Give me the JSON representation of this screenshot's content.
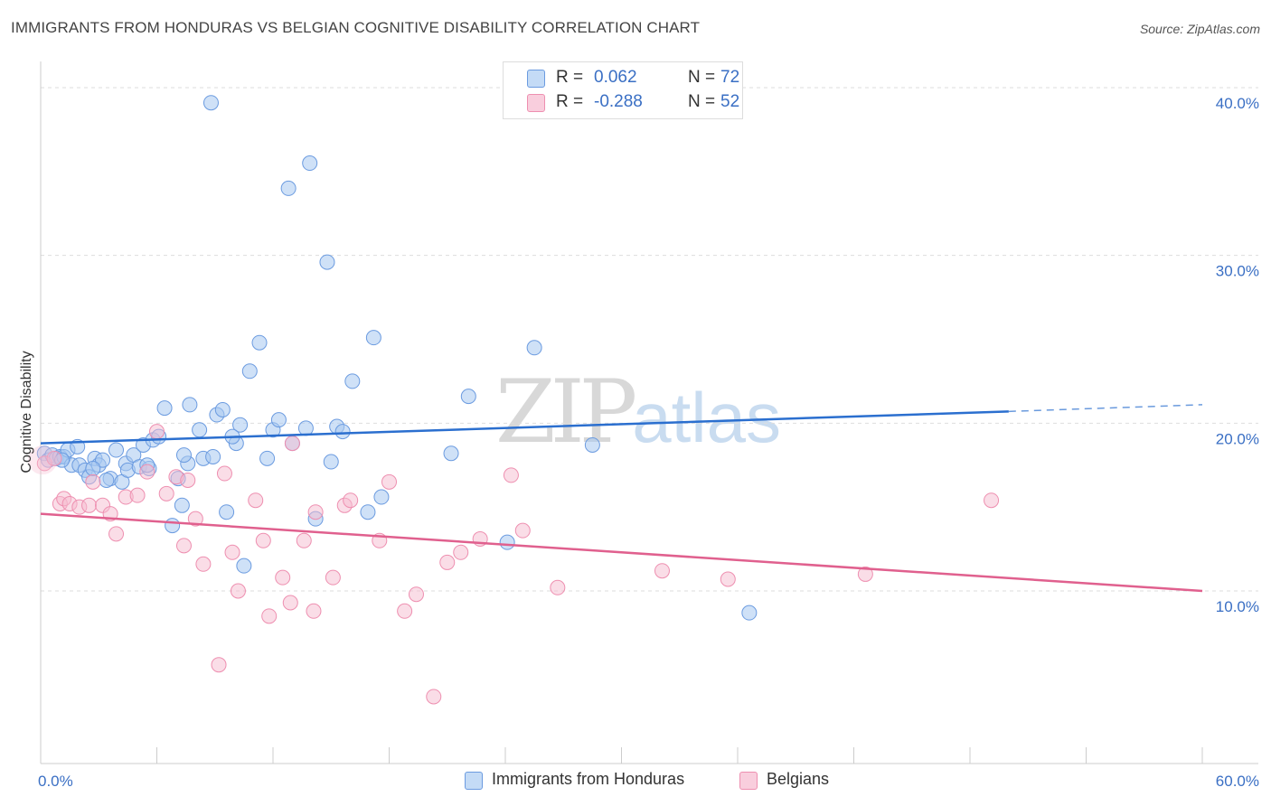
{
  "title": "IMMIGRANTS FROM HONDURAS VS BELGIAN COGNITIVE DISABILITY CORRELATION CHART",
  "source": "Source: ZipAtlas.com",
  "watermark": {
    "zip": "ZIP",
    "atlas": "atlas"
  },
  "legend_top": [
    {
      "r_label": "R =",
      "r_value": "0.062",
      "n_label": "N =",
      "n_value": "72"
    },
    {
      "r_label": "R =",
      "r_value": "-0.288",
      "n_label": "N =",
      "n_value": "52"
    }
  ],
  "legend_bottom": [
    "Immigrants from Honduras",
    "Belgians"
  ],
  "colors": {
    "blue_fill": "#a8c8f0",
    "blue_edge": "#6b9be0",
    "blue_line": "#2b6fcf",
    "pink_fill": "#f6bcd0",
    "pink_edge": "#ee8fb0",
    "pink_line": "#e0608e",
    "axis_text": "#3a6fc4",
    "grid": "#dddddd"
  },
  "chart_data": {
    "type": "scatter",
    "title": "IMMIGRANTS FROM HONDURAS VS BELGIAN COGNITIVE DISABILITY CORRELATION CHART",
    "xlabel": "",
    "ylabel": "Cognitive Disability",
    "xlim": [
      0,
      60
    ],
    "ylim": [
      0,
      40
    ],
    "x_tick_labels": [
      "0.0%",
      "60.0%"
    ],
    "y_ticks": [
      10,
      20,
      30,
      40
    ],
    "y_tick_labels": [
      "10.0%",
      "20.0%",
      "30.0%",
      "40.0%"
    ],
    "series": [
      {
        "name": "Immigrants from Honduras",
        "r": 0.062,
        "n": 72,
        "trend": {
          "x0": 0,
          "y0": 18.8,
          "x1": 50,
          "y1": 20.7,
          "dashed_to": 60,
          "dashed_y": 21.1
        },
        "points": [
          [
            0.2,
            18.2
          ],
          [
            0.4,
            17.8
          ],
          [
            0.6,
            18.1
          ],
          [
            0.8,
            17.9
          ],
          [
            1.0,
            18.0
          ],
          [
            1.2,
            18.0
          ],
          [
            1.4,
            18.4
          ],
          [
            1.6,
            17.5
          ],
          [
            1.9,
            18.6
          ],
          [
            2.0,
            17.5
          ],
          [
            2.3,
            17.2
          ],
          [
            2.5,
            16.8
          ],
          [
            2.8,
            17.9
          ],
          [
            3.0,
            17.5
          ],
          [
            3.2,
            17.8
          ],
          [
            3.6,
            16.7
          ],
          [
            3.9,
            18.4
          ],
          [
            4.2,
            16.5
          ],
          [
            4.4,
            17.6
          ],
          [
            4.5,
            17.2
          ],
          [
            4.8,
            18.1
          ],
          [
            5.1,
            17.4
          ],
          [
            5.3,
            18.7
          ],
          [
            5.6,
            17.3
          ],
          [
            5.8,
            19.0
          ],
          [
            6.1,
            19.2
          ],
          [
            6.4,
            20.9
          ],
          [
            6.8,
            13.9
          ],
          [
            7.1,
            16.7
          ],
          [
            7.3,
            15.1
          ],
          [
            7.6,
            17.6
          ],
          [
            7.7,
            21.1
          ],
          [
            8.2,
            19.6
          ],
          [
            8.4,
            17.9
          ],
          [
            8.8,
            39.1
          ],
          [
            8.9,
            18.0
          ],
          [
            9.1,
            20.5
          ],
          [
            9.4,
            20.8
          ],
          [
            9.6,
            14.7
          ],
          [
            10.1,
            18.8
          ],
          [
            10.3,
            19.9
          ],
          [
            10.5,
            11.5
          ],
          [
            10.8,
            23.1
          ],
          [
            11.3,
            24.8
          ],
          [
            11.7,
            17.9
          ],
          [
            12.0,
            19.6
          ],
          [
            12.3,
            20.2
          ],
          [
            12.8,
            34.0
          ],
          [
            13.0,
            18.8
          ],
          [
            13.7,
            19.7
          ],
          [
            13.9,
            35.5
          ],
          [
            14.2,
            14.3
          ],
          [
            14.8,
            29.6
          ],
          [
            15.0,
            17.7
          ],
          [
            15.3,
            19.8
          ],
          [
            15.6,
            19.5
          ],
          [
            16.1,
            22.5
          ],
          [
            16.9,
            14.7
          ],
          [
            17.2,
            25.1
          ],
          [
            17.6,
            15.6
          ],
          [
            21.2,
            18.2
          ],
          [
            22.1,
            21.6
          ],
          [
            24.1,
            12.9
          ],
          [
            25.5,
            24.5
          ],
          [
            28.5,
            18.7
          ],
          [
            36.6,
            8.7
          ],
          [
            1.1,
            17.8
          ],
          [
            2.7,
            17.3
          ],
          [
            3.4,
            16.6
          ],
          [
            5.5,
            17.5
          ],
          [
            7.4,
            18.1
          ],
          [
            9.9,
            19.2
          ]
        ]
      },
      {
        "name": "Belgians",
        "r": -0.288,
        "n": 52,
        "trend": {
          "x0": 0,
          "y0": 14.6,
          "x1": 60,
          "y1": 10.0
        },
        "points": [
          [
            0.2,
            17.6
          ],
          [
            0.7,
            17.9
          ],
          [
            1.0,
            15.2
          ],
          [
            1.2,
            15.5
          ],
          [
            1.5,
            15.2
          ],
          [
            2.0,
            15.0
          ],
          [
            2.5,
            15.1
          ],
          [
            2.7,
            16.5
          ],
          [
            3.2,
            15.1
          ],
          [
            3.6,
            14.6
          ],
          [
            3.9,
            13.4
          ],
          [
            4.4,
            15.6
          ],
          [
            5.0,
            15.7
          ],
          [
            5.5,
            17.1
          ],
          [
            6.0,
            19.5
          ],
          [
            6.5,
            15.8
          ],
          [
            7.0,
            16.8
          ],
          [
            7.4,
            12.7
          ],
          [
            7.6,
            16.6
          ],
          [
            8.0,
            14.3
          ],
          [
            8.4,
            11.6
          ],
          [
            9.2,
            5.6
          ],
          [
            9.5,
            17.0
          ],
          [
            9.9,
            12.3
          ],
          [
            10.2,
            10.0
          ],
          [
            11.1,
            15.4
          ],
          [
            11.5,
            13.0
          ],
          [
            11.8,
            8.5
          ],
          [
            12.5,
            10.8
          ],
          [
            12.9,
            9.3
          ],
          [
            13.0,
            18.8
          ],
          [
            13.6,
            13.0
          ],
          [
            14.1,
            8.8
          ],
          [
            14.2,
            14.7
          ],
          [
            15.1,
            10.8
          ],
          [
            15.7,
            15.1
          ],
          [
            16.0,
            15.4
          ],
          [
            17.5,
            13.0
          ],
          [
            18.0,
            16.5
          ],
          [
            18.8,
            8.8
          ],
          [
            19.4,
            9.8
          ],
          [
            20.3,
            3.7
          ],
          [
            21.0,
            11.7
          ],
          [
            21.7,
            12.3
          ],
          [
            22.7,
            13.1
          ],
          [
            24.3,
            16.9
          ],
          [
            24.9,
            13.6
          ],
          [
            26.7,
            10.2
          ],
          [
            32.1,
            11.2
          ],
          [
            35.5,
            10.7
          ],
          [
            42.6,
            11.0
          ],
          [
            49.1,
            15.4
          ]
        ]
      }
    ]
  }
}
